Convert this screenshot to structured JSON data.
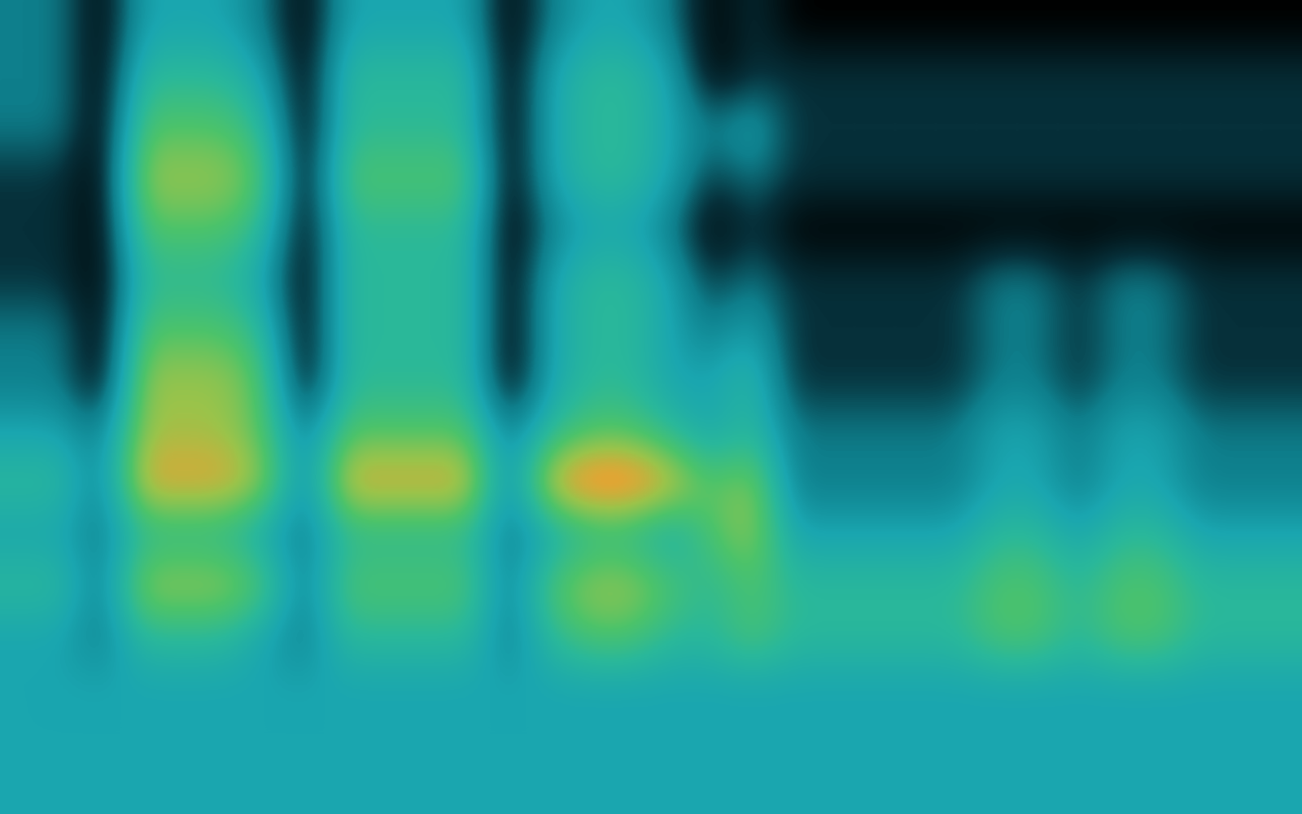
{
  "chart_data": {
    "type": "heatmap",
    "tick_labels": false,
    "cells": [
      [
        3,
        3,
        1,
        4,
        4,
        4,
        3,
        1,
        4,
        4,
        4,
        4,
        1,
        3,
        4,
        4,
        3,
        1,
        2,
        1,
        1,
        1,
        1,
        1,
        1,
        1,
        1,
        1,
        1,
        1,
        1,
        1
      ],
      [
        3,
        3,
        1,
        5,
        5,
        5,
        4,
        1,
        5,
        5,
        5,
        5,
        1,
        4,
        5,
        5,
        4,
        1,
        2,
        2,
        2,
        2,
        2,
        2,
        2,
        2,
        2,
        2,
        2,
        2,
        2,
        2
      ],
      [
        3,
        3,
        1,
        6,
        6,
        6,
        5,
        1,
        5,
        5,
        5,
        5,
        1,
        4,
        5,
        5,
        4,
        3,
        4,
        2,
        2,
        2,
        2,
        2,
        2,
        2,
        2,
        2,
        2,
        2,
        2,
        2
      ],
      [
        2,
        2,
        1,
        7,
        7,
        7,
        6,
        1,
        6,
        6,
        6,
        6,
        1,
        4,
        5,
        5,
        4,
        2,
        3,
        2,
        2,
        2,
        2,
        2,
        2,
        2,
        2,
        2,
        2,
        2,
        2,
        2
      ],
      [
        2,
        2,
        1,
        6,
        6,
        6,
        5,
        1,
        5,
        5,
        5,
        5,
        1,
        3,
        4,
        4,
        3,
        1,
        2,
        1,
        1,
        1,
        1,
        1,
        1,
        1,
        1,
        1,
        1,
        1,
        1,
        1
      ],
      [
        2,
        2,
        1,
        5,
        5,
        5,
        4,
        1,
        5,
        5,
        5,
        5,
        1,
        4,
        5,
        5,
        4,
        2,
        3,
        2,
        2,
        2,
        2,
        2,
        3,
        3,
        2,
        3,
        3,
        2,
        2,
        2
      ],
      [
        3,
        3,
        1,
        6,
        6,
        6,
        5,
        1,
        5,
        5,
        5,
        5,
        1,
        4,
        5,
        5,
        4,
        3,
        4,
        2,
        2,
        2,
        2,
        2,
        3,
        3,
        2,
        3,
        3,
        2,
        2,
        2
      ],
      [
        3,
        3,
        1,
        7,
        7,
        7,
        6,
        1,
        5,
        5,
        5,
        5,
        1,
        4,
        5,
        5,
        4,
        4,
        5,
        2,
        2,
        2,
        2,
        2,
        3,
        3,
        2,
        3,
        3,
        2,
        2,
        2
      ],
      [
        4,
        4,
        3,
        7,
        7,
        7,
        6,
        3,
        6,
        6,
        6,
        6,
        3,
        5,
        6,
        6,
        5,
        4,
        5,
        3,
        3,
        3,
        3,
        3,
        4,
        4,
        3,
        4,
        4,
        3,
        3,
        3
      ],
      [
        5,
        5,
        3,
        8,
        8,
        8,
        7,
        3,
        8,
        8,
        8,
        8,
        3,
        8,
        9,
        9,
        8,
        6,
        7,
        3,
        3,
        3,
        3,
        3,
        4,
        4,
        3,
        4,
        4,
        3,
        3,
        3
      ],
      [
        4,
        4,
        3,
        5,
        5,
        5,
        4,
        3,
        5,
        5,
        5,
        5,
        3,
        4,
        5,
        5,
        4,
        6,
        7,
        4,
        4,
        4,
        4,
        4,
        5,
        5,
        4,
        5,
        5,
        4,
        4,
        4
      ],
      [
        5,
        5,
        3,
        7,
        7,
        7,
        6,
        3,
        6,
        6,
        6,
        6,
        3,
        6,
        7,
        7,
        6,
        5,
        6,
        5,
        5,
        5,
        5,
        5,
        6,
        6,
        5,
        6,
        6,
        5,
        5,
        5
      ],
      [
        4,
        4,
        3,
        5,
        5,
        5,
        4,
        3,
        5,
        5,
        5,
        5,
        3,
        5,
        6,
        6,
        5,
        5,
        6,
        5,
        5,
        5,
        5,
        5,
        6,
        6,
        5,
        6,
        6,
        5,
        5,
        5
      ],
      [
        4,
        4,
        4,
        4,
        4,
        4,
        4,
        4,
        4,
        4,
        4,
        4,
        4,
        4,
        4,
        4,
        4,
        4,
        4,
        4,
        4,
        4,
        4,
        4,
        4,
        4,
        4,
        4,
        4,
        4,
        4,
        4
      ],
      [
        4,
        4,
        4,
        4,
        4,
        4,
        4,
        4,
        4,
        4,
        4,
        4,
        4,
        4,
        4,
        4,
        4,
        4,
        4,
        4,
        4,
        4,
        4,
        4,
        4,
        4,
        4,
        4,
        4,
        4,
        4,
        4
      ],
      [
        4,
        4,
        4,
        4,
        4,
        4,
        4,
        4,
        4,
        4,
        4,
        4,
        4,
        4,
        4,
        4,
        4,
        4,
        4,
        4,
        4,
        4,
        4,
        4,
        4,
        4,
        4,
        4,
        4,
        4,
        4,
        4
      ]
    ]
  }
}
